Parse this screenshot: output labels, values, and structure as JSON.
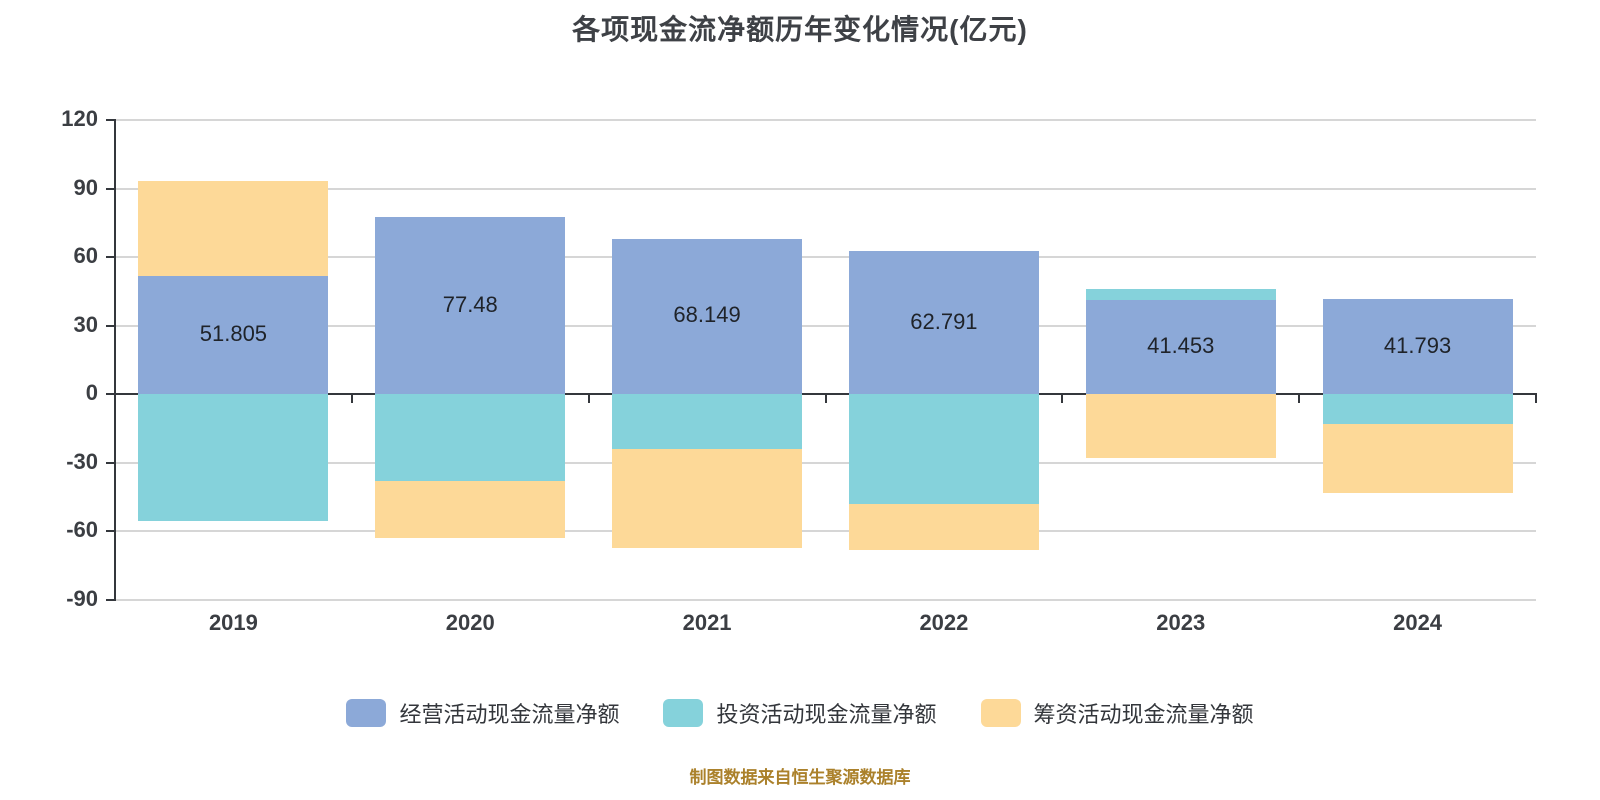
{
  "title": "各项现金流净额历年变化情况(亿元)",
  "source_note": "制图数据来自恒生聚源数据库",
  "style": {
    "background": "#ffffff",
    "grid_color": "#d6d6d6",
    "axis_color": "#34373c",
    "axis_label_color": "#3b3e43",
    "title_color": "#3e4146",
    "source_color": "#ab812b"
  },
  "chart_data": {
    "type": "bar",
    "stacked": true,
    "title": "各项现金流净额历年变化情况(亿元)",
    "categories": [
      "2019",
      "2020",
      "2021",
      "2022",
      "2023",
      "2024"
    ],
    "series": [
      {
        "name": "经营活动现金流量净额",
        "color": "#8ca9d8",
        "values": [
          51.805,
          77.48,
          68.149,
          62.791,
          41.453,
          41.793
        ],
        "labels": [
          "51.805",
          "77.48",
          "68.149",
          "62.791",
          "41.453",
          "41.793"
        ]
      },
      {
        "name": "投资活动现金流量净额",
        "color": "#85d2db",
        "values": [
          -55.3,
          -38.1,
          -23.8,
          -48.2,
          4.5,
          -13.1
        ]
      },
      {
        "name": "筹资活动现金流量净额",
        "color": "#fdd998",
        "values": [
          41.3,
          -24.8,
          -43.5,
          -20.1,
          -27.9,
          -30.2
        ]
      }
    ],
    "xlabel": "",
    "ylabel": "",
    "ylim": [
      -90,
      120
    ],
    "yticks": [
      120,
      90,
      60,
      30,
      0,
      -30,
      -60,
      -90
    ],
    "grid": true,
    "legend_position": "bottom"
  }
}
